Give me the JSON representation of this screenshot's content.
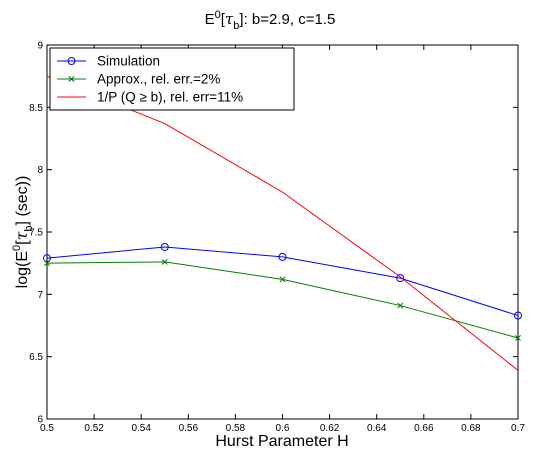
{
  "chart_data": {
    "type": "line",
    "title": {
      "prefix": "E",
      "sup": "0",
      "bracket_open": "[",
      "tau": "τ",
      "tau_sub": "b",
      "bracket_close": "]",
      "suffix": ":  b=2.9, c=1.5"
    },
    "xlabel": "Hurst Parameter H",
    "ylabel": {
      "prefix": "log(E",
      "sup": "0",
      "bracket_open": "[",
      "tau": "τ",
      "tau_sub": "b",
      "suffix": "] (sec))"
    },
    "xlim": [
      0.5,
      0.7
    ],
    "ylim": [
      6,
      9
    ],
    "xticks": [
      0.5,
      0.52,
      0.54,
      0.56,
      0.58,
      0.6,
      0.62,
      0.64,
      0.66,
      0.68,
      0.7
    ],
    "xtick_labels": [
      "0.5",
      "0.52",
      "0.54",
      "0.56",
      "0.58",
      "0.6",
      "0.62",
      "0.64",
      "0.66",
      "0.68",
      "0.7"
    ],
    "yticks": [
      6,
      6.5,
      7,
      7.5,
      8,
      8.5,
      9
    ],
    "ytick_labels": [
      "6",
      "6.5",
      "7",
      "7.5",
      "8",
      "8.5",
      "9"
    ],
    "grid": false,
    "legend_position": "top-left",
    "series": [
      {
        "name": "Simulation",
        "color": "#0000ff",
        "marker": "circle",
        "x": [
          0.5,
          0.55,
          0.6,
          0.65,
          0.7
        ],
        "y": [
          7.29,
          7.38,
          7.3,
          7.13,
          6.83
        ]
      },
      {
        "name": "Approx., rel. err.=2%",
        "color": "#008000",
        "marker": "x",
        "x": [
          0.5,
          0.55,
          0.6,
          0.65,
          0.7
        ],
        "y": [
          7.25,
          7.26,
          7.12,
          6.91,
          6.65
        ]
      },
      {
        "name": "1/P (Q ≥ b), rel. err=11%",
        "color": "#ff0000",
        "marker": "none",
        "x": [
          0.5,
          0.55,
          0.6,
          0.65,
          0.7
        ],
        "y": [
          8.75,
          8.37,
          7.82,
          7.14,
          6.39
        ]
      }
    ]
  }
}
